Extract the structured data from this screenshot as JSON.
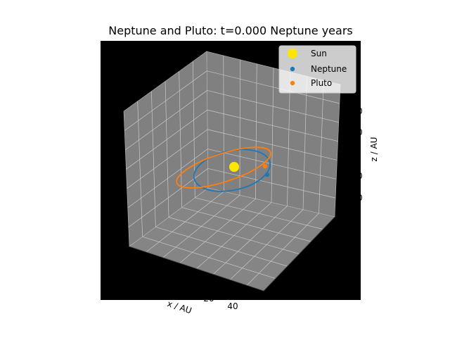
{
  "chart_data": {
    "type": "scatter",
    "projection": "3d",
    "title": "Neptune and Pluto: t=0.000 Neptune years",
    "xlabel": "x / AU",
    "ylabel": "",
    "zlabel": "z / AU",
    "visible_ticks": [
      "20",
      "40"
    ],
    "background": "#000000",
    "pane_color": "#808080",
    "legend": {
      "position": "top-right",
      "entries": [
        {
          "name": "Sun",
          "color": "#ffe600"
        },
        {
          "name": "Neptune",
          "color": "#1f77b4"
        },
        {
          "name": "Pluto",
          "color": "#ff7f0e"
        }
      ]
    },
    "orbits": [
      {
        "name": "Neptune",
        "color": "#1f77b4"
      },
      {
        "name": "Pluto",
        "color": "#ff7f0e"
      }
    ]
  }
}
